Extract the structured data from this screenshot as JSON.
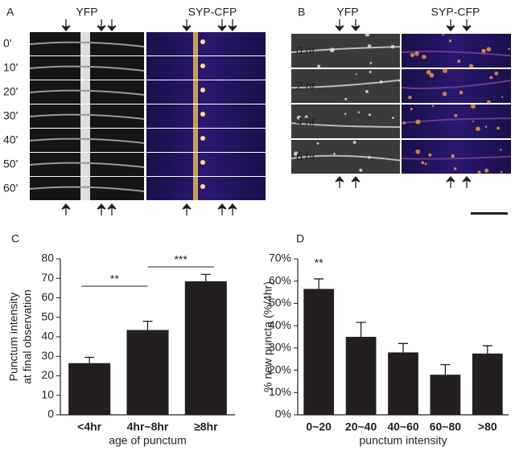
{
  "images": [
    {
      "panel_label": "A",
      "titles": [
        "YFP",
        "SYP-CFP"
      ],
      "rows": [
        "0'",
        "10'",
        "20'",
        "30'",
        "40'",
        "50'",
        "60'"
      ]
    },
    {
      "panel_label": "B",
      "titles": [
        "YFP",
        "SYP-CFP"
      ],
      "rows": [
        "0 hr",
        "2 hr",
        "4 hr",
        "6 hr"
      ]
    }
  ],
  "chart_data": [
    {
      "type": "bar",
      "panel_label": "C",
      "ylabel": [
        "Punctum intensity",
        "at final observation"
      ],
      "xlabel": "age of punctum",
      "categories": [
        "<4hr",
        "4hr~8hr",
        "≥8hr"
      ],
      "values": [
        26.5,
        43.5,
        68.5
      ],
      "errors": [
        3,
        4.5,
        3.5
      ],
      "color": "#231f20",
      "ylim": [
        0,
        80
      ],
      "yticks": [
        0,
        10,
        20,
        30,
        40,
        50,
        60,
        70,
        80
      ],
      "annotations": [
        "**",
        "***"
      ]
    },
    {
      "type": "bar",
      "panel_label": "D",
      "ylabel": [
        "% new puncta (%/4hr)"
      ],
      "xlabel": "punctum intensity",
      "categories": [
        "0~20",
        "20~40",
        "40~60",
        "60~80",
        ">80"
      ],
      "values": [
        56.5,
        35,
        28,
        18,
        27.5
      ],
      "errors": [
        4.5,
        6.5,
        4,
        4.5,
        3.5
      ],
      "color": "#231f20",
      "ylim": [
        0,
        70
      ],
      "yticks": [
        {
          "value": 0,
          "label": "0%"
        },
        {
          "value": 10,
          "label": "10%"
        },
        {
          "value": 20,
          "label": "20%"
        },
        {
          "value": 30,
          "label": "30%"
        },
        {
          "value": 40,
          "label": "40%"
        },
        {
          "value": 50,
          "label": "50%"
        },
        {
          "value": 60,
          "label": "60%"
        },
        {
          "value": 70,
          "label": "70%"
        }
      ],
      "annotations": [
        "**"
      ]
    }
  ]
}
